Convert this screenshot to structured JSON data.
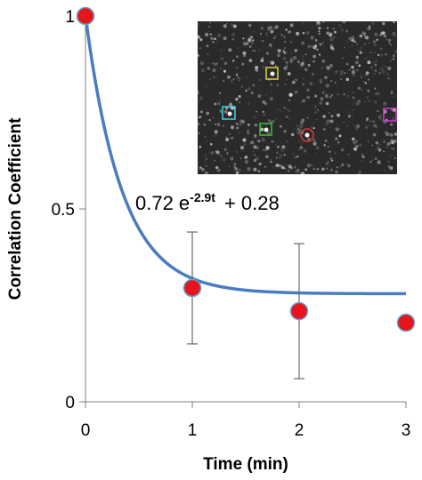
{
  "chart_data": {
    "type": "scatter",
    "xlabel": "Time (min)",
    "ylabel": "Correlation Coefficient",
    "xlim": [
      0,
      3
    ],
    "ylim": [
      0,
      1
    ],
    "x_ticks": [
      "0",
      "1",
      "2",
      "3"
    ],
    "y_ticks": [
      "0",
      "0.5",
      "1"
    ],
    "grid": false,
    "series": [
      {
        "type": "scatter",
        "x": [
          0,
          1,
          2,
          3
        ],
        "y": [
          1.0,
          0.295,
          0.235,
          0.205
        ],
        "error_y": [
          0.0,
          0.145,
          0.175,
          0.0
        ],
        "color": "#e8141c",
        "edge_color": "#5fa6d6"
      },
      {
        "type": "line",
        "x_range": [
          0,
          3
        ],
        "coefficients": {
          "a": 0.72,
          "b": 2.9,
          "c": 0.28
        },
        "color": "#4a7cc0"
      }
    ],
    "annotation": {
      "coef": "0.72 e",
      "exponent": "-2.9t",
      "offset": "+ 0.28"
    },
    "inset": {
      "type": "image",
      "description_marks": [
        "yellow-box",
        "cyan-box",
        "green-box",
        "red-circle",
        "magenta-box"
      ],
      "marker_colors": [
        "#e0d23a",
        "#3ad8e0",
        "#3ac23a",
        "#e03a3a",
        "#d23ad2"
      ]
    }
  }
}
